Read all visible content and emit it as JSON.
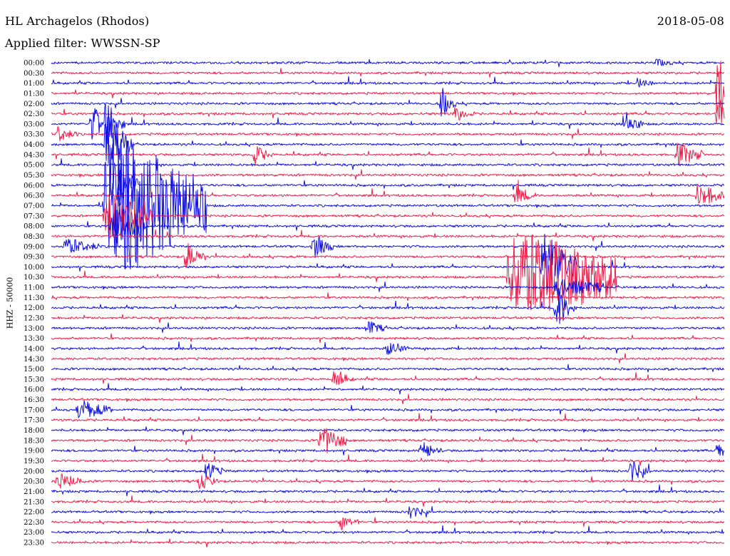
{
  "header": {
    "station": "HL Archagelos (Rhodos)",
    "filter": "Applied filter: WWSSN-SP",
    "date": "2018-05-08"
  },
  "channel_label": "HHZ - 50000",
  "chart_data": {
    "type": "line",
    "title": "HL Archagelos (Rhodos)",
    "subtitle": "Applied filter: WWSSN-SP",
    "date": "2018-05-08",
    "ylabel": "HHZ - 50000",
    "xlabel": "",
    "trace_interval_minutes": 30,
    "grid": false,
    "colors": {
      "even": "#1010e0",
      "odd": "#ee1e4a"
    },
    "categories": [
      "00:00",
      "00:30",
      "01:00",
      "01:30",
      "02:00",
      "02:30",
      "03:00",
      "03:30",
      "04:00",
      "04:30",
      "05:00",
      "05:30",
      "06:00",
      "06:30",
      "07:00",
      "07:30",
      "08:00",
      "08:30",
      "09:00",
      "09:30",
      "10:00",
      "10:30",
      "11:00",
      "11:30",
      "12:00",
      "12:30",
      "13:00",
      "13:30",
      "14:00",
      "14:30",
      "15:00",
      "15:30",
      "16:00",
      "16:30",
      "17:00",
      "17:30",
      "18:00",
      "18:30",
      "19:00",
      "19:30",
      "20:00",
      "20:30",
      "21:00",
      "21:30",
      "22:00",
      "22:30",
      "23:00",
      "23:30"
    ],
    "events": [
      {
        "row": 0,
        "t": 0.9,
        "amp": 5,
        "dur": 0.01
      },
      {
        "row": 2,
        "t": 0.87,
        "amp": 6,
        "dur": 0.01
      },
      {
        "row": 3,
        "t": 0.99,
        "amp": 70,
        "dur": 0.005
      },
      {
        "row": 4,
        "t": 0.58,
        "amp": 22,
        "dur": 0.005
      },
      {
        "row": 5,
        "t": 0.6,
        "amp": 10,
        "dur": 0.01
      },
      {
        "row": 5,
        "t": 0.99,
        "amp": 20,
        "dur": 0.01
      },
      {
        "row": 6,
        "t": 0.06,
        "amp": 25,
        "dur": 0.01
      },
      {
        "row": 6,
        "t": 0.08,
        "amp": 28,
        "dur": 0.01
      },
      {
        "row": 6,
        "t": 0.85,
        "amp": 18,
        "dur": 0.01
      },
      {
        "row": 7,
        "t": 0.01,
        "amp": 12,
        "dur": 0.01
      },
      {
        "row": 8,
        "t": 0.08,
        "amp": 40,
        "dur": 0.02
      },
      {
        "row": 9,
        "t": 0.3,
        "amp": 14,
        "dur": 0.01
      },
      {
        "row": 9,
        "t": 0.93,
        "amp": 15,
        "dur": 0.02
      },
      {
        "row": 12,
        "t": 0.09,
        "amp": 35,
        "dur": 0.02
      },
      {
        "row": 13,
        "t": 0.69,
        "amp": 14,
        "dur": 0.01
      },
      {
        "row": 13,
        "t": 0.96,
        "amp": 16,
        "dur": 0.02
      },
      {
        "row": 14,
        "t": 0.08,
        "amp": 90,
        "dur": 0.13
      },
      {
        "row": 15,
        "t": 0.08,
        "amp": 30,
        "dur": 0.05
      },
      {
        "row": 16,
        "t": 0.09,
        "amp": 35,
        "dur": 0.03
      },
      {
        "row": 18,
        "t": 0.02,
        "amp": 10,
        "dur": 0.03
      },
      {
        "row": 18,
        "t": 0.39,
        "amp": 18,
        "dur": 0.01
      },
      {
        "row": 19,
        "t": 0.2,
        "amp": 20,
        "dur": 0.01
      },
      {
        "row": 20,
        "t": 0.73,
        "amp": 45,
        "dur": 0.03
      },
      {
        "row": 21,
        "t": 0.68,
        "amp": 60,
        "dur": 0.14
      },
      {
        "row": 22,
        "t": 0.75,
        "amp": 12,
        "dur": 0.05
      },
      {
        "row": 24,
        "t": 0.75,
        "amp": 30,
        "dur": 0.01
      },
      {
        "row": 26,
        "t": 0.47,
        "amp": 10,
        "dur": 0.01
      },
      {
        "row": 28,
        "t": 0.5,
        "amp": 10,
        "dur": 0.01
      },
      {
        "row": 31,
        "t": 0.42,
        "amp": 12,
        "dur": 0.01
      },
      {
        "row": 34,
        "t": 0.04,
        "amp": 12,
        "dur": 0.03
      },
      {
        "row": 37,
        "t": 0.4,
        "amp": 20,
        "dur": 0.02
      },
      {
        "row": 38,
        "t": 0.55,
        "amp": 12,
        "dur": 0.01
      },
      {
        "row": 38,
        "t": 0.99,
        "amp": 10,
        "dur": 0.01
      },
      {
        "row": 40,
        "t": 0.23,
        "amp": 12,
        "dur": 0.01
      },
      {
        "row": 40,
        "t": 0.86,
        "amp": 15,
        "dur": 0.01
      },
      {
        "row": 41,
        "t": 0.01,
        "amp": 10,
        "dur": 0.02
      },
      {
        "row": 41,
        "t": 0.22,
        "amp": 12,
        "dur": 0.01
      },
      {
        "row": 44,
        "t": 0.53,
        "amp": 10,
        "dur": 0.01
      },
      {
        "row": 45,
        "t": 0.43,
        "amp": 10,
        "dur": 0.01
      }
    ]
  }
}
